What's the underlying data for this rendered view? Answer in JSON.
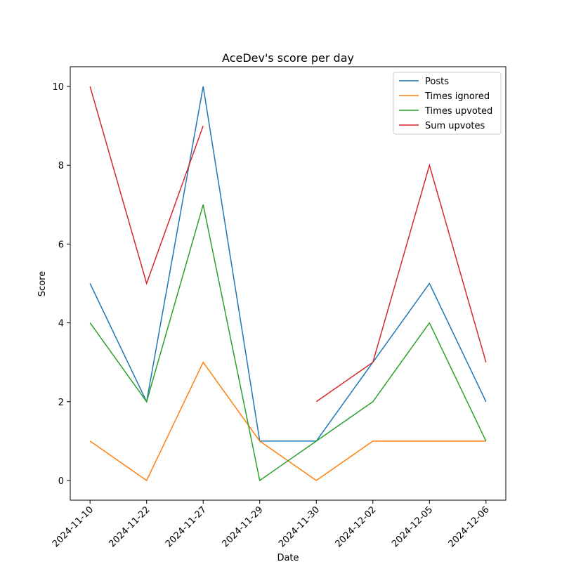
{
  "chart_data": {
    "type": "line",
    "title": "AceDev's score per day",
    "xlabel": "Date",
    "ylabel": "Score",
    "categories": [
      "2024-11-10",
      "2024-11-22",
      "2024-11-27",
      "2024-11-29",
      "2024-11-30",
      "2024-12-02",
      "2024-12-05",
      "2024-12-06"
    ],
    "series": [
      {
        "name": "Posts",
        "color": "#1f77b4",
        "values": [
          5,
          2,
          10,
          1,
          1,
          3,
          5,
          2
        ]
      },
      {
        "name": "Times ignored",
        "color": "#ff7f0e",
        "values": [
          1,
          0,
          3,
          1,
          0,
          1,
          1,
          1
        ]
      },
      {
        "name": "Times upvoted",
        "color": "#2ca02c",
        "values": [
          4,
          2,
          7,
          0,
          1,
          2,
          4,
          1
        ]
      },
      {
        "name": "Sum upvotes",
        "color": "#d62728",
        "values": [
          10,
          5,
          9,
          null,
          2,
          3,
          8,
          3
        ]
      }
    ],
    "ylim": [
      -0.5,
      10.5
    ],
    "yticks": [
      0,
      2,
      4,
      6,
      8,
      10
    ],
    "grid": false,
    "legend": "upper right"
  }
}
